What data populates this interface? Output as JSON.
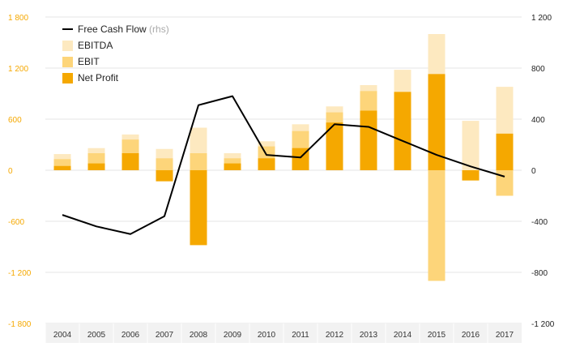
{
  "chart_data": {
    "type": "bar",
    "categories": [
      "2004",
      "2005",
      "2006",
      "2007",
      "2008",
      "2009",
      "2010",
      "2011",
      "2012",
      "2013",
      "2014",
      "2015",
      "2016",
      "2017"
    ],
    "series": [
      {
        "name": "EBITDA",
        "type": "bar",
        "axis": "left",
        "color": "#fde9c0",
        "values": [
          190,
          260,
          420,
          250,
          500,
          200,
          340,
          540,
          750,
          1000,
          1180,
          1600,
          580,
          980
        ]
      },
      {
        "name": "EBIT",
        "type": "bar",
        "axis": "left",
        "color": "#fdd57a",
        "values": [
          130,
          200,
          360,
          140,
          200,
          140,
          280,
          460,
          680,
          930,
          920,
          -1300,
          -120,
          -300
        ]
      },
      {
        "name": "Net Profit",
        "type": "bar",
        "axis": "left",
        "color": "#f5a800",
        "values": [
          50,
          80,
          200,
          -130,
          -880,
          80,
          140,
          260,
          560,
          700,
          920,
          1130,
          -120,
          430
        ]
      },
      {
        "name": "Free Cash Flow",
        "name_suffix": "(rhs)",
        "type": "line",
        "axis": "right",
        "color": "#000000",
        "values": [
          -350,
          -440,
          -500,
          -360,
          510,
          580,
          120,
          100,
          360,
          340,
          230,
          120,
          30,
          -50
        ]
      }
    ],
    "y_left": {
      "ticks": [
        "1 800",
        "1 200",
        "600",
        "0",
        "-600",
        "-1 200",
        "-1 800"
      ],
      "ylim": [
        -1800,
        1800
      ]
    },
    "y_right": {
      "ticks": [
        "1 200",
        "800",
        "400",
        "0",
        "-400",
        "-800",
        "-1 200"
      ],
      "ylim": [
        -1200,
        1200
      ]
    },
    "legend": {
      "placement": "top-left",
      "order": [
        "Free Cash Flow",
        "EBITDA",
        "EBIT",
        "Net Profit"
      ]
    },
    "grid": true,
    "colors": {
      "left_axis_text": "#f5a800",
      "right_axis_text": "#222222",
      "grid": "#e6e6e6",
      "x_band": "#f2f2f2",
      "muted": "#aaaaaa"
    }
  }
}
